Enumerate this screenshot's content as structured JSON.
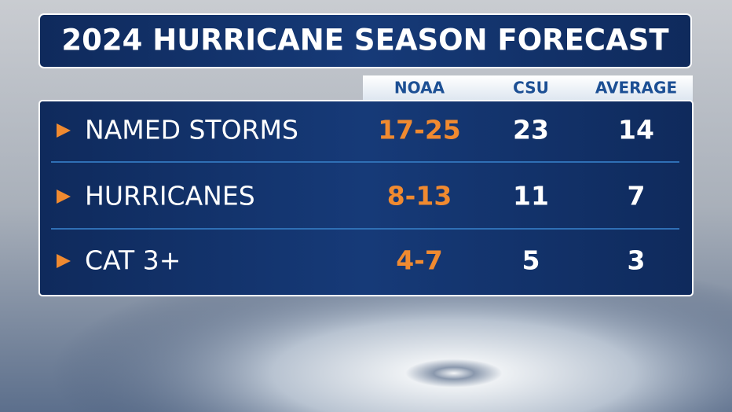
{
  "header": {
    "title": "2024 HURRICANE SEASON FORECAST"
  },
  "table": {
    "columns": [
      "NOAA",
      "CSU",
      "AVERAGE"
    ],
    "rows": [
      {
        "label": "NAMED STORMS",
        "cells": [
          "17-25",
          "23",
          "14"
        ]
      },
      {
        "label": "HURRICANES",
        "cells": [
          "8-13",
          "11",
          "7"
        ]
      },
      {
        "label": "CAT 3+",
        "cells": [
          "4-7",
          "5",
          "3"
        ]
      }
    ]
  }
}
